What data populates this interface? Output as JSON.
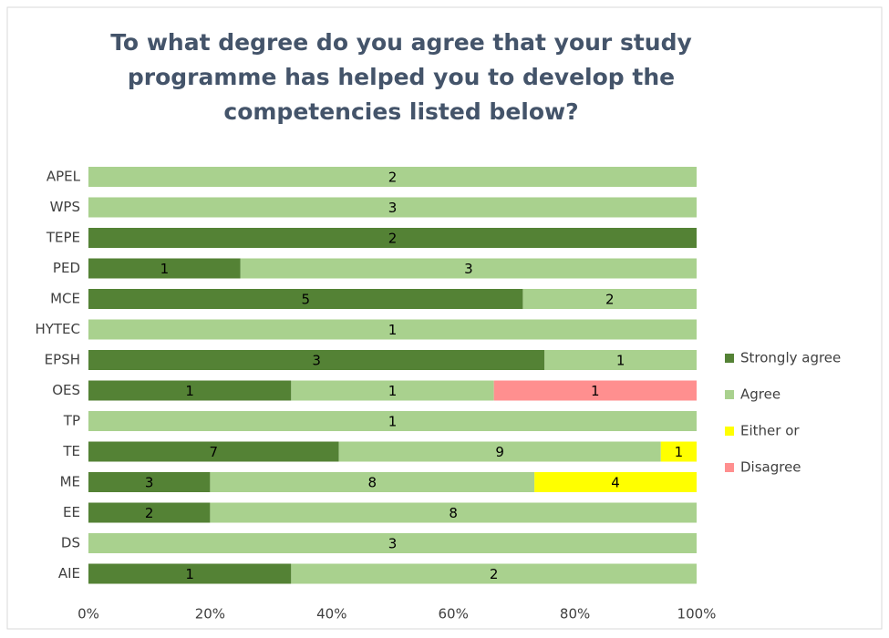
{
  "chart_data": {
    "type": "bar",
    "orientation": "horizontal",
    "stacking": "percent",
    "title": [
      "To what degree do you agree that your study",
      "programme has helped you to develop the",
      "competencies listed below?"
    ],
    "categories": [
      "APEL",
      "WPS",
      "TEPE",
      "PED",
      "MCE",
      "HYTEC",
      "EPSH",
      "OES",
      "TP",
      "TE",
      "ME",
      "EE",
      "DS",
      "AIE"
    ],
    "series": [
      {
        "name": "Strongly agree",
        "color": "#548235",
        "values": [
          null,
          null,
          2,
          1,
          5,
          null,
          3,
          1,
          null,
          7,
          3,
          2,
          null,
          1
        ]
      },
      {
        "name": "Agree",
        "color": "#a9d18e",
        "values": [
          2,
          3,
          null,
          3,
          2,
          1,
          1,
          1,
          1,
          9,
          8,
          8,
          3,
          2
        ]
      },
      {
        "name": "Either or",
        "color": "#ffff00",
        "values": [
          null,
          null,
          null,
          null,
          null,
          null,
          null,
          null,
          null,
          1,
          4,
          null,
          null,
          null
        ]
      },
      {
        "name": "Disagree",
        "color": "#ff8f8f",
        "values": [
          null,
          null,
          null,
          null,
          null,
          null,
          null,
          1,
          null,
          null,
          null,
          null,
          null,
          null
        ]
      }
    ],
    "xlim": [
      0,
      100
    ],
    "xticks": [
      {
        "value": 0,
        "label": "0%"
      },
      {
        "value": 20,
        "label": "20%"
      },
      {
        "value": 40,
        "label": "40%"
      },
      {
        "value": 60,
        "label": "60%"
      },
      {
        "value": 80,
        "label": "80%"
      },
      {
        "value": 100,
        "label": "100%"
      }
    ],
    "legend": "right",
    "grid": false
  }
}
